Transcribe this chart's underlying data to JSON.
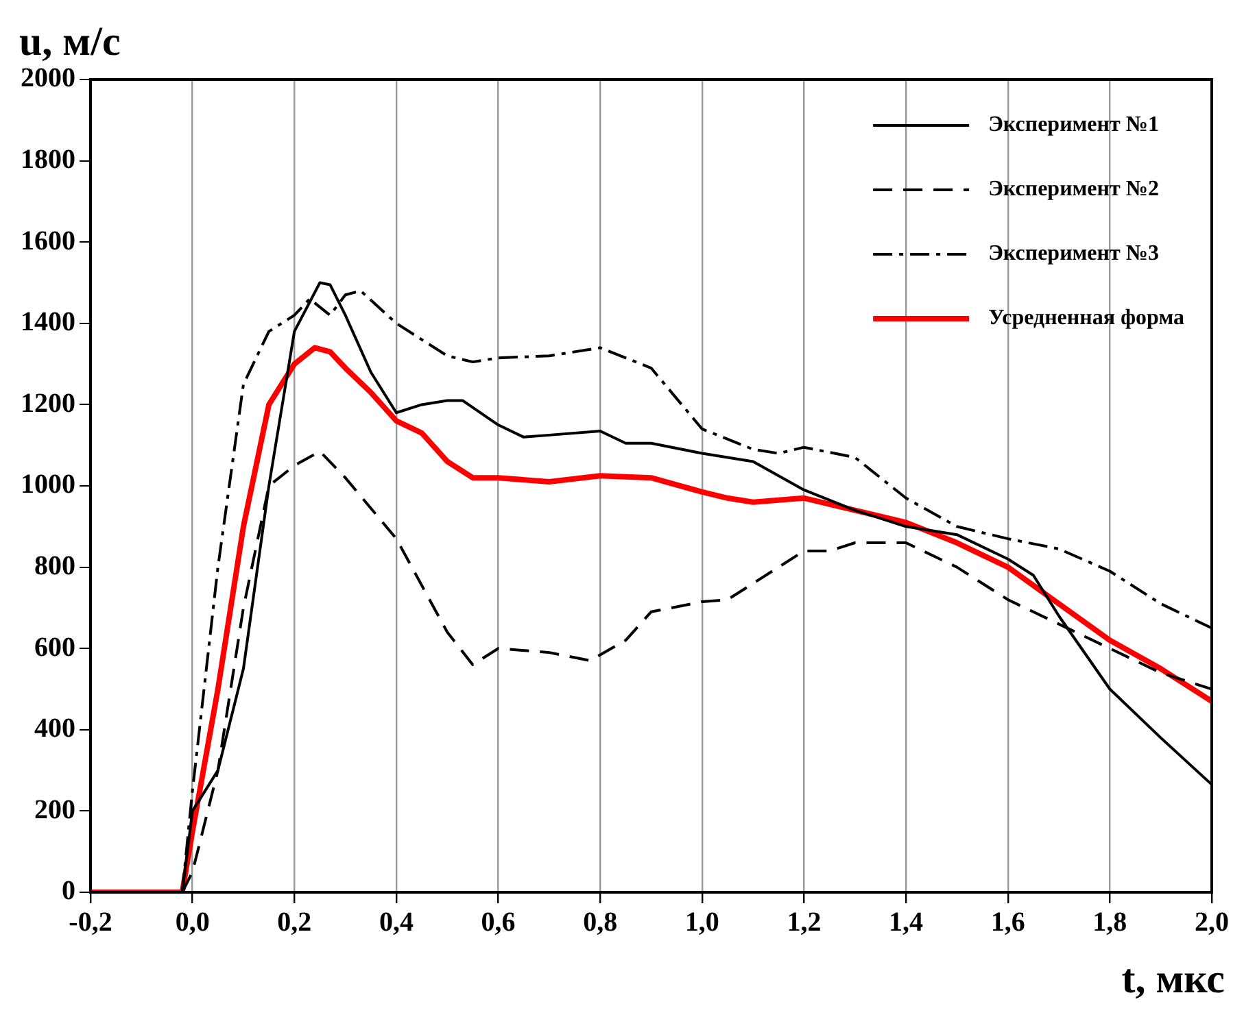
{
  "chart_data": {
    "type": "line",
    "xlabel": "t, мкс",
    "ylabel": "u, м/с",
    "xlim": [
      -0.2,
      2.0
    ],
    "xticks": [
      {
        "value": -0.2,
        "label": "-0,2"
      },
      {
        "value": 0,
        "label": "0,0"
      },
      {
        "value": 0.2,
        "label": "0,2"
      },
      {
        "value": 0.4,
        "label": "0,4"
      },
      {
        "value": 0.6,
        "label": "0,6"
      },
      {
        "value": 0.8,
        "label": "0,8"
      },
      {
        "value": 1.0,
        "label": "1,0"
      },
      {
        "value": 1.2,
        "label": "1,2"
      },
      {
        "value": 1.4,
        "label": "1,4"
      },
      {
        "value": 1.6,
        "label": "1,6"
      },
      {
        "value": 1.8,
        "label": "1,8"
      },
      {
        "value": 2.0,
        "label": "2,0"
      }
    ],
    "ylim": [
      0,
      2000
    ],
    "yticks": [
      0,
      200,
      400,
      600,
      800,
      1000,
      1200,
      1400,
      1600,
      1800,
      2000
    ],
    "grid": "x",
    "legend": "top right",
    "marker": "none",
    "series": [
      {
        "name": "Эксперимент №1",
        "color": "#000000",
        "line_style": "solid",
        "x": [
          -0.02,
          0,
          0.05,
          0.1,
          0.15,
          0.2,
          0.25,
          0.27,
          0.3,
          0.35,
          0.4,
          0.45,
          0.5,
          0.53,
          0.6,
          0.65,
          0.7,
          0.8,
          0.85,
          0.9,
          1.0,
          1.1,
          1.2,
          1.3,
          1.4,
          1.5,
          1.6,
          1.65,
          1.7,
          1.8,
          1.9,
          2.0
        ],
        "values": [
          0,
          200,
          300,
          550,
          1000,
          1380,
          1500,
          1495,
          1420,
          1280,
          1180,
          1200,
          1210,
          1210,
          1150,
          1120,
          1125,
          1135,
          1105,
          1105,
          1080,
          1060,
          990,
          940,
          900,
          880,
          820,
          780,
          680,
          500,
          380,
          265
        ]
      },
      {
        "name": "Эксперимент №2",
        "color": "#000000",
        "line_style": "dashed",
        "x": [
          -0.02,
          0,
          0.05,
          0.1,
          0.15,
          0.2,
          0.25,
          0.3,
          0.4,
          0.5,
          0.55,
          0.6,
          0.7,
          0.78,
          0.85,
          0.9,
          1.0,
          1.05,
          1.1,
          1.2,
          1.25,
          1.3,
          1.4,
          1.5,
          1.6,
          1.7,
          1.8,
          1.9,
          2.0
        ],
        "values": [
          0,
          50,
          300,
          700,
          1000,
          1050,
          1085,
          1020,
          870,
          640,
          560,
          600,
          590,
          570,
          620,
          690,
          715,
          720,
          760,
          840,
          840,
          860,
          860,
          800,
          720,
          660,
          600,
          540,
          500
        ]
      },
      {
        "name": "Эксперимент №3",
        "color": "#000000",
        "line_style": "dotted",
        "x": [
          -0.02,
          0,
          0.05,
          0.1,
          0.15,
          0.2,
          0.23,
          0.27,
          0.3,
          0.33,
          0.4,
          0.5,
          0.55,
          0.6,
          0.7,
          0.8,
          0.9,
          1.0,
          1.1,
          1.15,
          1.2,
          1.3,
          1.4,
          1.5,
          1.6,
          1.7,
          1.8,
          1.9,
          2.0
        ],
        "values": [
          0,
          250,
          800,
          1250,
          1380,
          1420,
          1460,
          1420,
          1470,
          1480,
          1400,
          1320,
          1305,
          1315,
          1320,
          1340,
          1290,
          1140,
          1090,
          1080,
          1095,
          1070,
          970,
          900,
          870,
          845,
          790,
          710,
          650
        ]
      },
      {
        "name": "Усредненная форма",
        "color": "#ff0000",
        "line_style": "solid",
        "x": [
          -0.2,
          -0.02,
          0,
          0.05,
          0.1,
          0.15,
          0.2,
          0.24,
          0.27,
          0.3,
          0.35,
          0.4,
          0.45,
          0.5,
          0.55,
          0.6,
          0.7,
          0.8,
          0.9,
          1.0,
          1.05,
          1.1,
          1.2,
          1.3,
          1.4,
          1.5,
          1.6,
          1.7,
          1.8,
          1.9,
          2.0
        ],
        "values": [
          0,
          0,
          150,
          500,
          900,
          1200,
          1300,
          1340,
          1330,
          1290,
          1230,
          1160,
          1130,
          1060,
          1020,
          1020,
          1010,
          1025,
          1020,
          985,
          970,
          960,
          970,
          940,
          910,
          860,
          800,
          710,
          620,
          550,
          470
        ]
      }
    ]
  }
}
